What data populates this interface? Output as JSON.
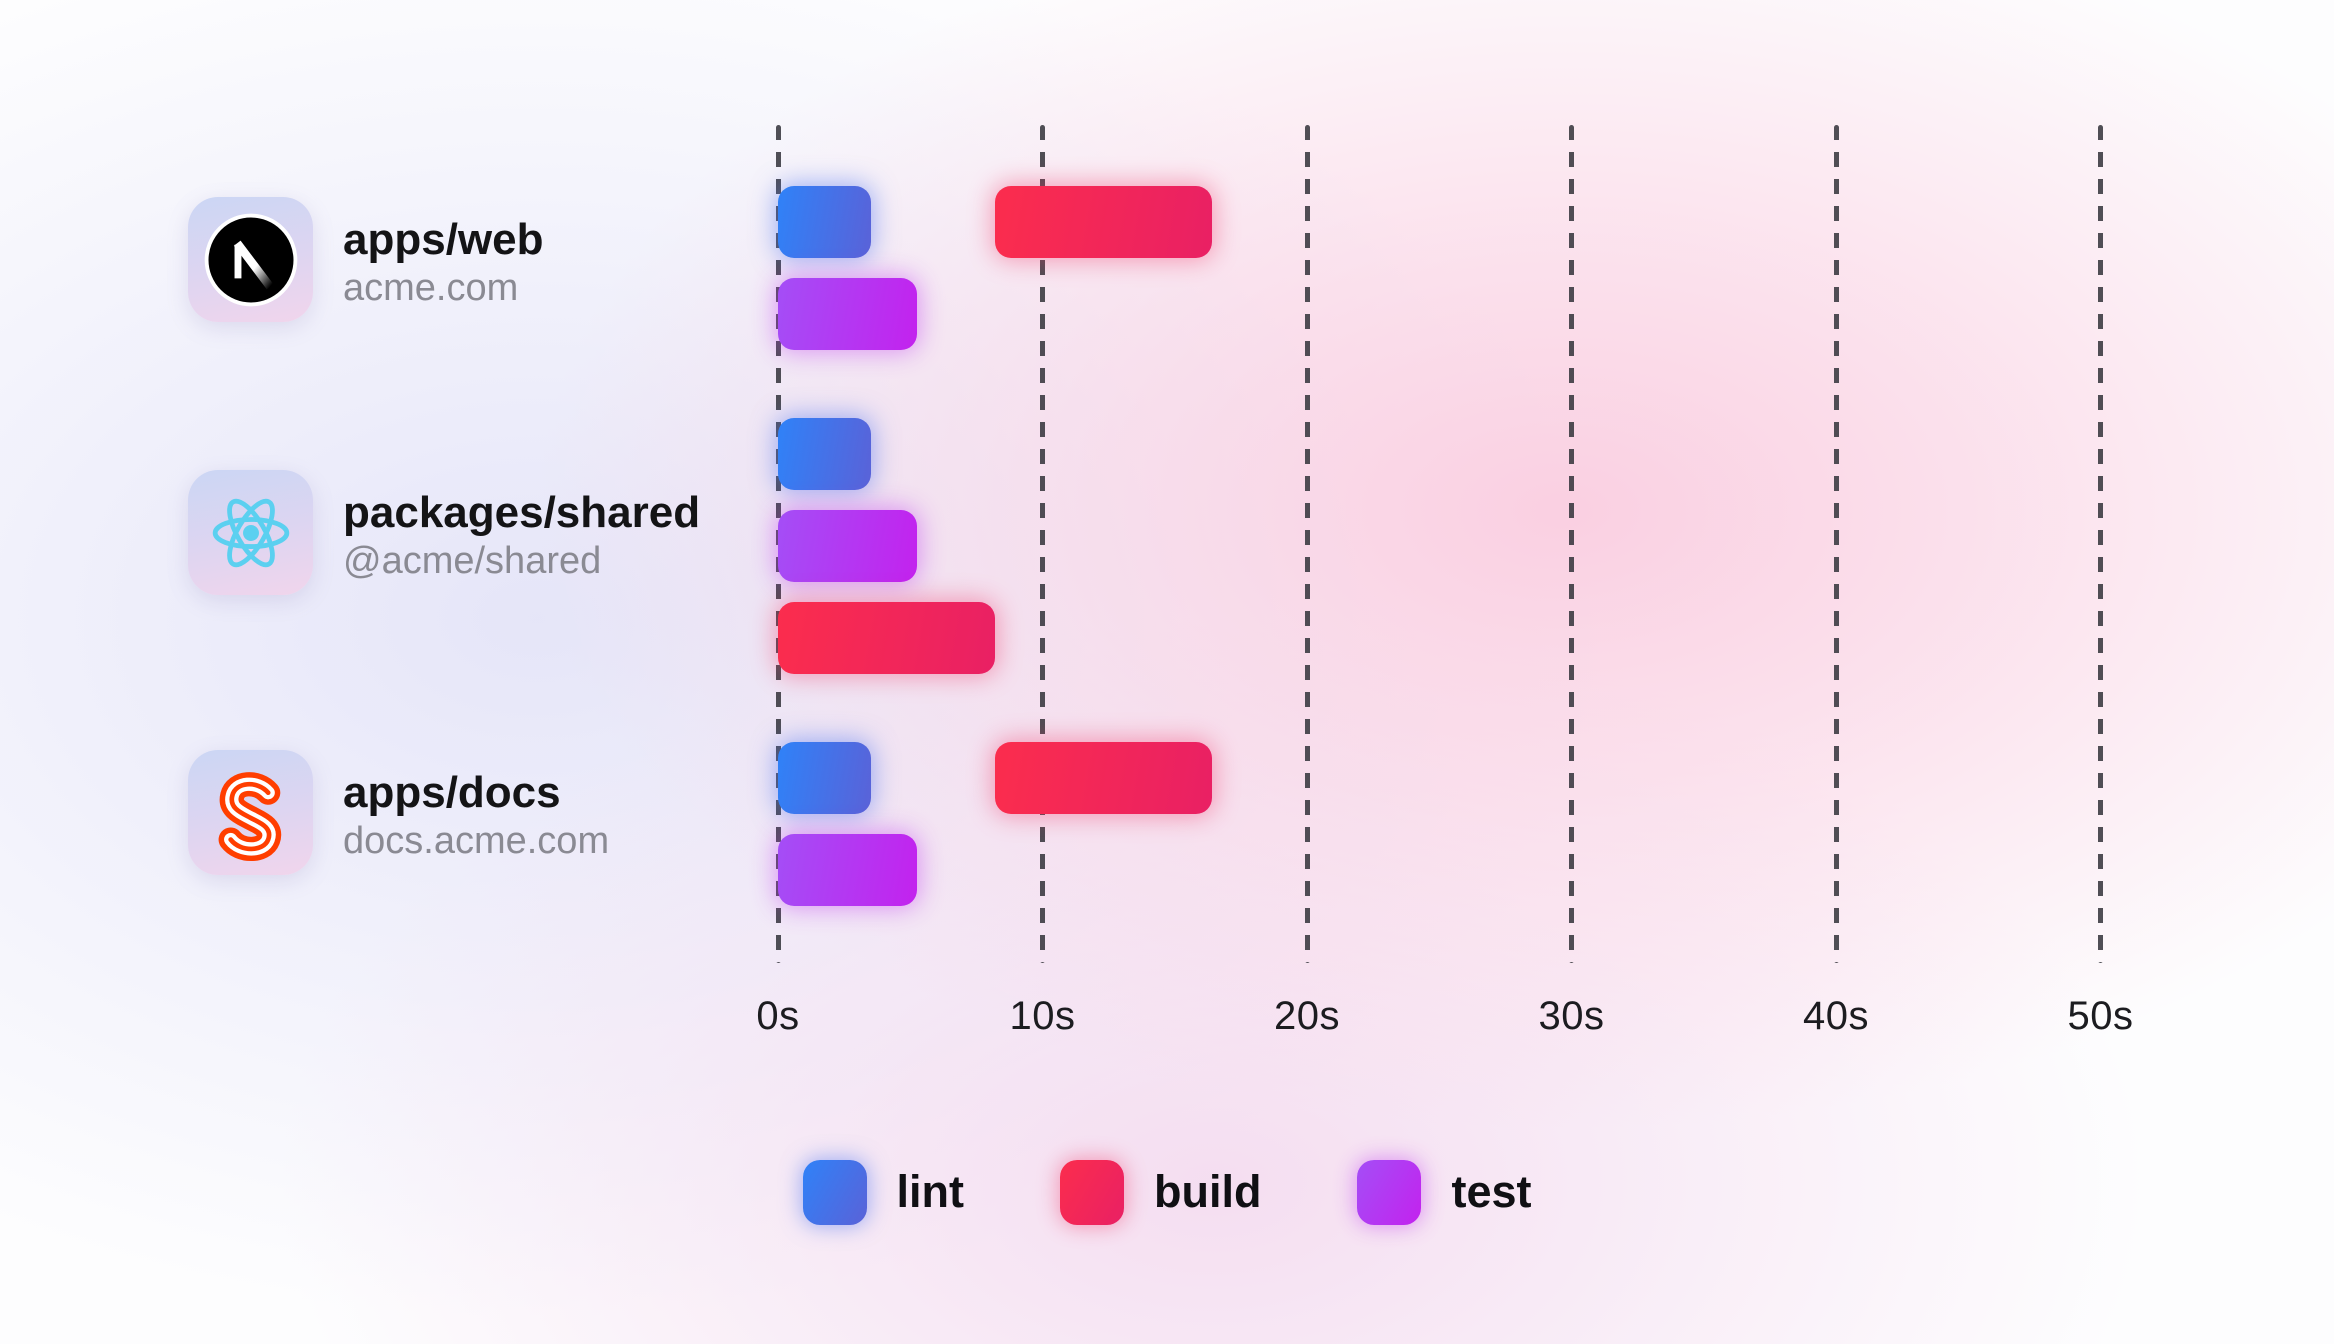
{
  "chart_data": {
    "type": "gantt",
    "title": "",
    "x_axis": {
      "unit": "seconds",
      "range": [
        0,
        50
      ],
      "gridlines": "dashed-vertical",
      "ticks": [
        {
          "label": "0s",
          "value": 0
        },
        {
          "label": "10s",
          "value": 10
        },
        {
          "label": "20s",
          "value": 20
        },
        {
          "label": "30s",
          "value": 30
        },
        {
          "label": "40s",
          "value": 40
        },
        {
          "label": "50s",
          "value": 50
        }
      ]
    },
    "legend": [
      {
        "key": "lint",
        "label": "lint"
      },
      {
        "key": "build",
        "label": "build"
      },
      {
        "key": "test",
        "label": "test"
      }
    ],
    "rows": [
      {
        "name": "apps/web",
        "subtitle": "acme.com",
        "icon": "nextjs-icon",
        "tasks": [
          {
            "task": "lint",
            "start_s": 0,
            "end_s": 3.5,
            "lane": 0
          },
          {
            "task": "build",
            "start_s": 8.2,
            "end_s": 16.4,
            "lane": 0
          },
          {
            "task": "test",
            "start_s": 0,
            "end_s": 5.25,
            "lane": 1
          }
        ]
      },
      {
        "name": "packages/shared",
        "subtitle": "@acme/shared",
        "icon": "react-icon",
        "tasks": [
          {
            "task": "lint",
            "start_s": 0,
            "end_s": 3.5,
            "lane": 0
          },
          {
            "task": "test",
            "start_s": 0,
            "end_s": 5.25,
            "lane": 1
          },
          {
            "task": "build",
            "start_s": 0,
            "end_s": 8.2,
            "lane": 2
          }
        ]
      },
      {
        "name": "apps/docs",
        "subtitle": "docs.acme.com",
        "icon": "svelte-icon",
        "tasks": [
          {
            "task": "lint",
            "start_s": 0,
            "end_s": 3.5,
            "lane": 0
          },
          {
            "task": "build",
            "start_s": 8.2,
            "end_s": 16.4,
            "lane": 0
          },
          {
            "task": "test",
            "start_s": 0,
            "end_s": 5.25,
            "lane": 1
          }
        ]
      }
    ]
  },
  "colors": {
    "lint_gradient_start": "#2f82f8",
    "lint_gradient_end": "#5a62d8",
    "build_gradient_start": "#fb2d4d",
    "build_gradient_end": "#e92064",
    "test_gradient_start": "#a44ef6",
    "test_gradient_end": "#c322ee",
    "gridline": "#38383f",
    "axis_label": "#1c1c20",
    "row_title": "#141416",
    "row_subtitle": "#8a8a93",
    "nextjs_black": "#000000",
    "react_cyan": "#5bd0f0",
    "svelte_orange": "#ff3e00"
  }
}
